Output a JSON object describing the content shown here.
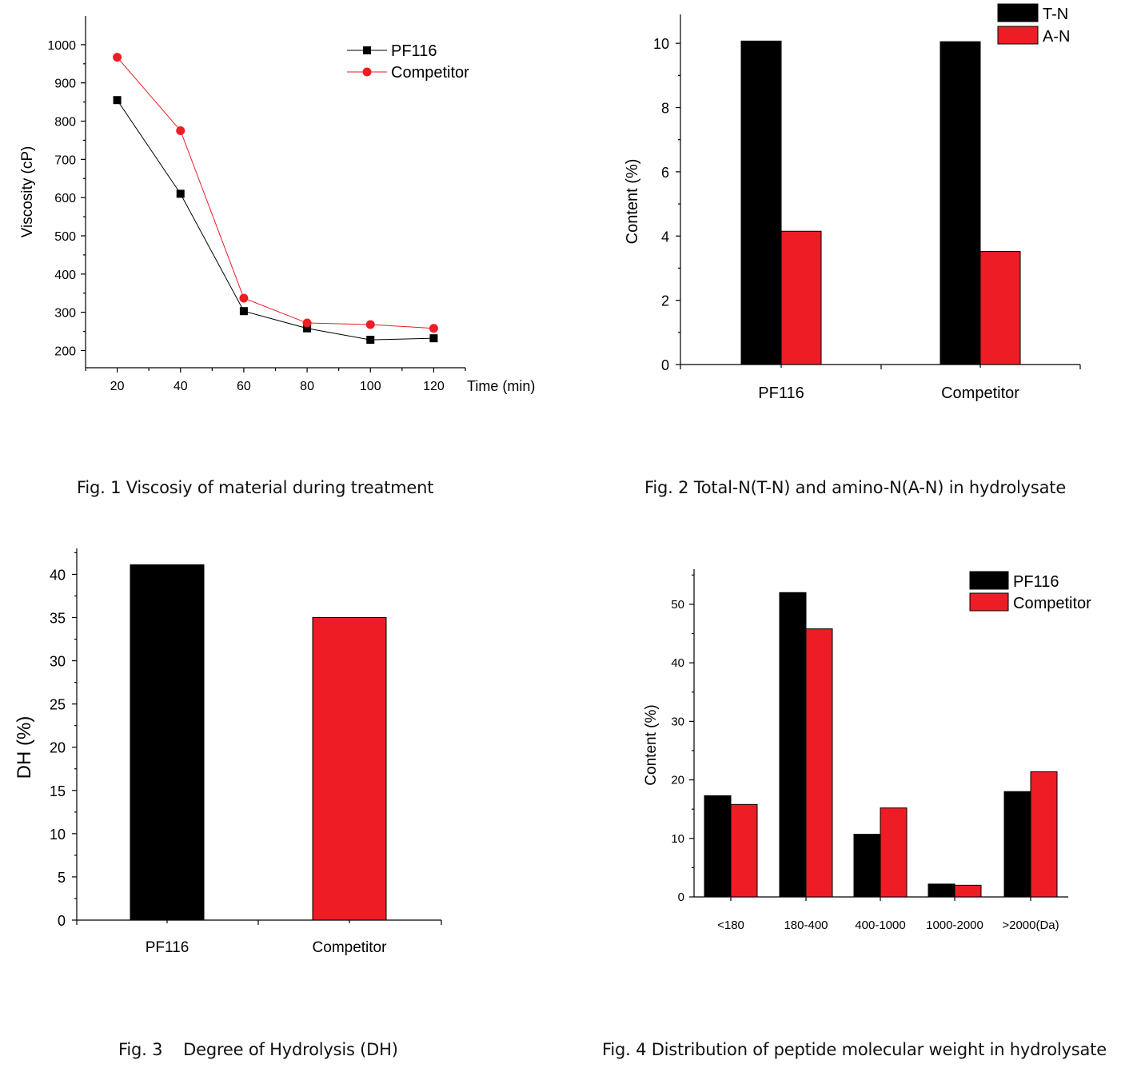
{
  "chart_data": [
    {
      "id": "fig1",
      "type": "line",
      "caption": "Fig. 1 Viscosiy of material during treatment",
      "xlabel": "Time (min)",
      "ylabel": "Viscosity (cP)",
      "x": [
        20,
        40,
        60,
        80,
        100,
        120
      ],
      "xticks": [
        "20",
        "40",
        "60",
        "80",
        "100",
        "120"
      ],
      "xlim": [
        10,
        130
      ],
      "yticks": [
        "200",
        "300",
        "400",
        "500",
        "600",
        "700",
        "800",
        "900",
        "1000"
      ],
      "ylim": [
        155,
        1075
      ],
      "grid": false,
      "legend": "top-right",
      "series": [
        {
          "name": "PF116",
          "values": [
            855,
            610,
            303,
            258,
            228,
            232
          ],
          "color": "#000000",
          "marker": "square"
        },
        {
          "name": "Competitor",
          "values": [
            967,
            775,
            337,
            272,
            268,
            258
          ],
          "color": "#ee1c25",
          "marker": "circle"
        }
      ]
    },
    {
      "id": "fig2",
      "type": "bar",
      "caption": "Fig. 2 Total-N(T-N) and amino-N(A-N) in hydrolysate",
      "xlabel": "",
      "ylabel": "Content (%)",
      "categories": [
        "PF116",
        "Competitor"
      ],
      "yticks": [
        "0",
        "2",
        "4",
        "6",
        "8",
        "10"
      ],
      "ylim": [
        0,
        10.9
      ],
      "grid": false,
      "legend": "top-right",
      "series": [
        {
          "name": "T-N",
          "values": [
            10.07,
            10.05
          ],
          "color": "#000000"
        },
        {
          "name": "A-N",
          "values": [
            4.15,
            3.52
          ],
          "color": "#ee1c25"
        }
      ]
    },
    {
      "id": "fig3",
      "type": "bar",
      "caption": "Fig. 3    Degree of Hydrolysis (DH)",
      "xlabel": "",
      "ylabel": "DH (%)",
      "categories": [
        "PF116",
        "Competitor"
      ],
      "yticks": [
        "0",
        "5",
        "10",
        "15",
        "20",
        "25",
        "30",
        "35",
        "40"
      ],
      "ylim": [
        0,
        43
      ],
      "grid": false,
      "series": [
        {
          "values": [
            41.1,
            35.0
          ],
          "colors": [
            "#000000",
            "#ee1c25"
          ]
        }
      ]
    },
    {
      "id": "fig4",
      "type": "bar",
      "caption": "Fig. 4 Distribution of peptide molecular weight in hydrolysate",
      "xlabel": "",
      "ylabel": "Content (%)",
      "categories": [
        "<180",
        "180-400",
        "400-1000",
        "1000-2000",
        ">2000(Da)"
      ],
      "yticks": [
        "0",
        "10",
        "20",
        "30",
        "40",
        "50"
      ],
      "ylim": [
        0,
        56
      ],
      "grid": false,
      "legend": "top-right",
      "series": [
        {
          "name": "PF116",
          "values": [
            17.3,
            52.0,
            10.7,
            2.2,
            18.0
          ],
          "color": "#000000"
        },
        {
          "name": "Competitor",
          "values": [
            15.8,
            45.8,
            15.2,
            2.0,
            21.4
          ],
          "color": "#ee1c25"
        }
      ]
    }
  ]
}
